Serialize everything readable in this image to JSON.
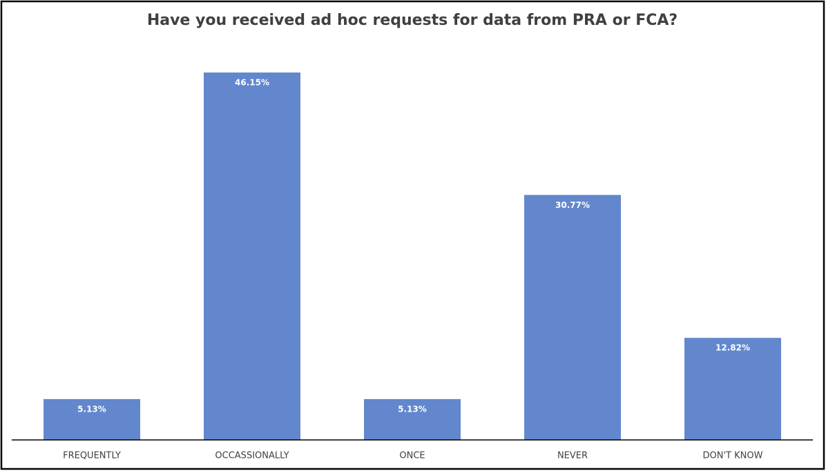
{
  "chart_data": {
    "type": "bar",
    "title": "Have you received ad hoc requests for data from PRA or FCA?",
    "categories": [
      "FREQUENTLY",
      "OCCASSIONALLY",
      "ONCE",
      "NEVER",
      "DON'T KNOW"
    ],
    "values": [
      5.13,
      46.15,
      5.13,
      30.77,
      12.82
    ],
    "value_labels": [
      "5.13%",
      "46.15%",
      "5.13%",
      "30.77%",
      "12.82%"
    ],
    "color": "#6287cd"
  }
}
